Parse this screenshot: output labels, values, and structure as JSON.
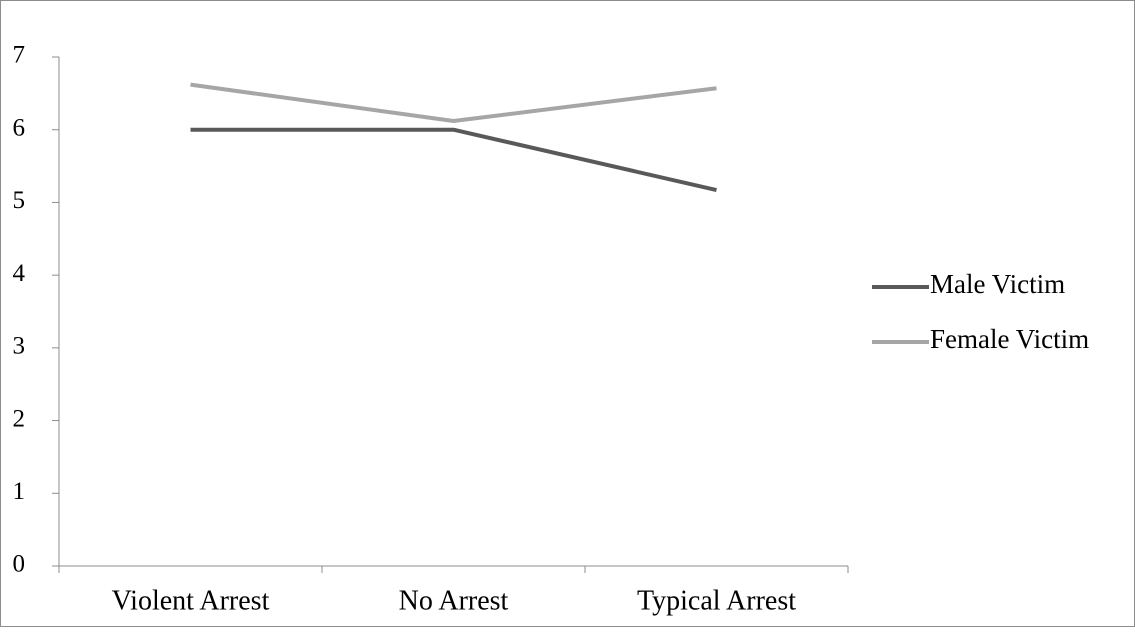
{
  "chart_data": {
    "type": "line",
    "title": "",
    "xlabel": "",
    "ylabel": "",
    "categories": [
      "Violent Arrest",
      "No Arrest",
      "Typical Arrest"
    ],
    "ylim": [
      0,
      7
    ],
    "yticks": [
      0,
      1,
      2,
      3,
      4,
      5,
      6,
      7
    ],
    "ytick_labels": [
      "0",
      "1",
      "2",
      "3",
      "4",
      "5",
      "6",
      "7"
    ],
    "grid": false,
    "legend_position": "right",
    "series": [
      {
        "name": "Male Victim",
        "values": [
          6.0,
          6.0,
          5.17
        ],
        "color": "#595959"
      },
      {
        "name": "Female Victim",
        "values": [
          6.62,
          6.12,
          6.57
        ],
        "color": "#a6a6a6"
      }
    ]
  }
}
